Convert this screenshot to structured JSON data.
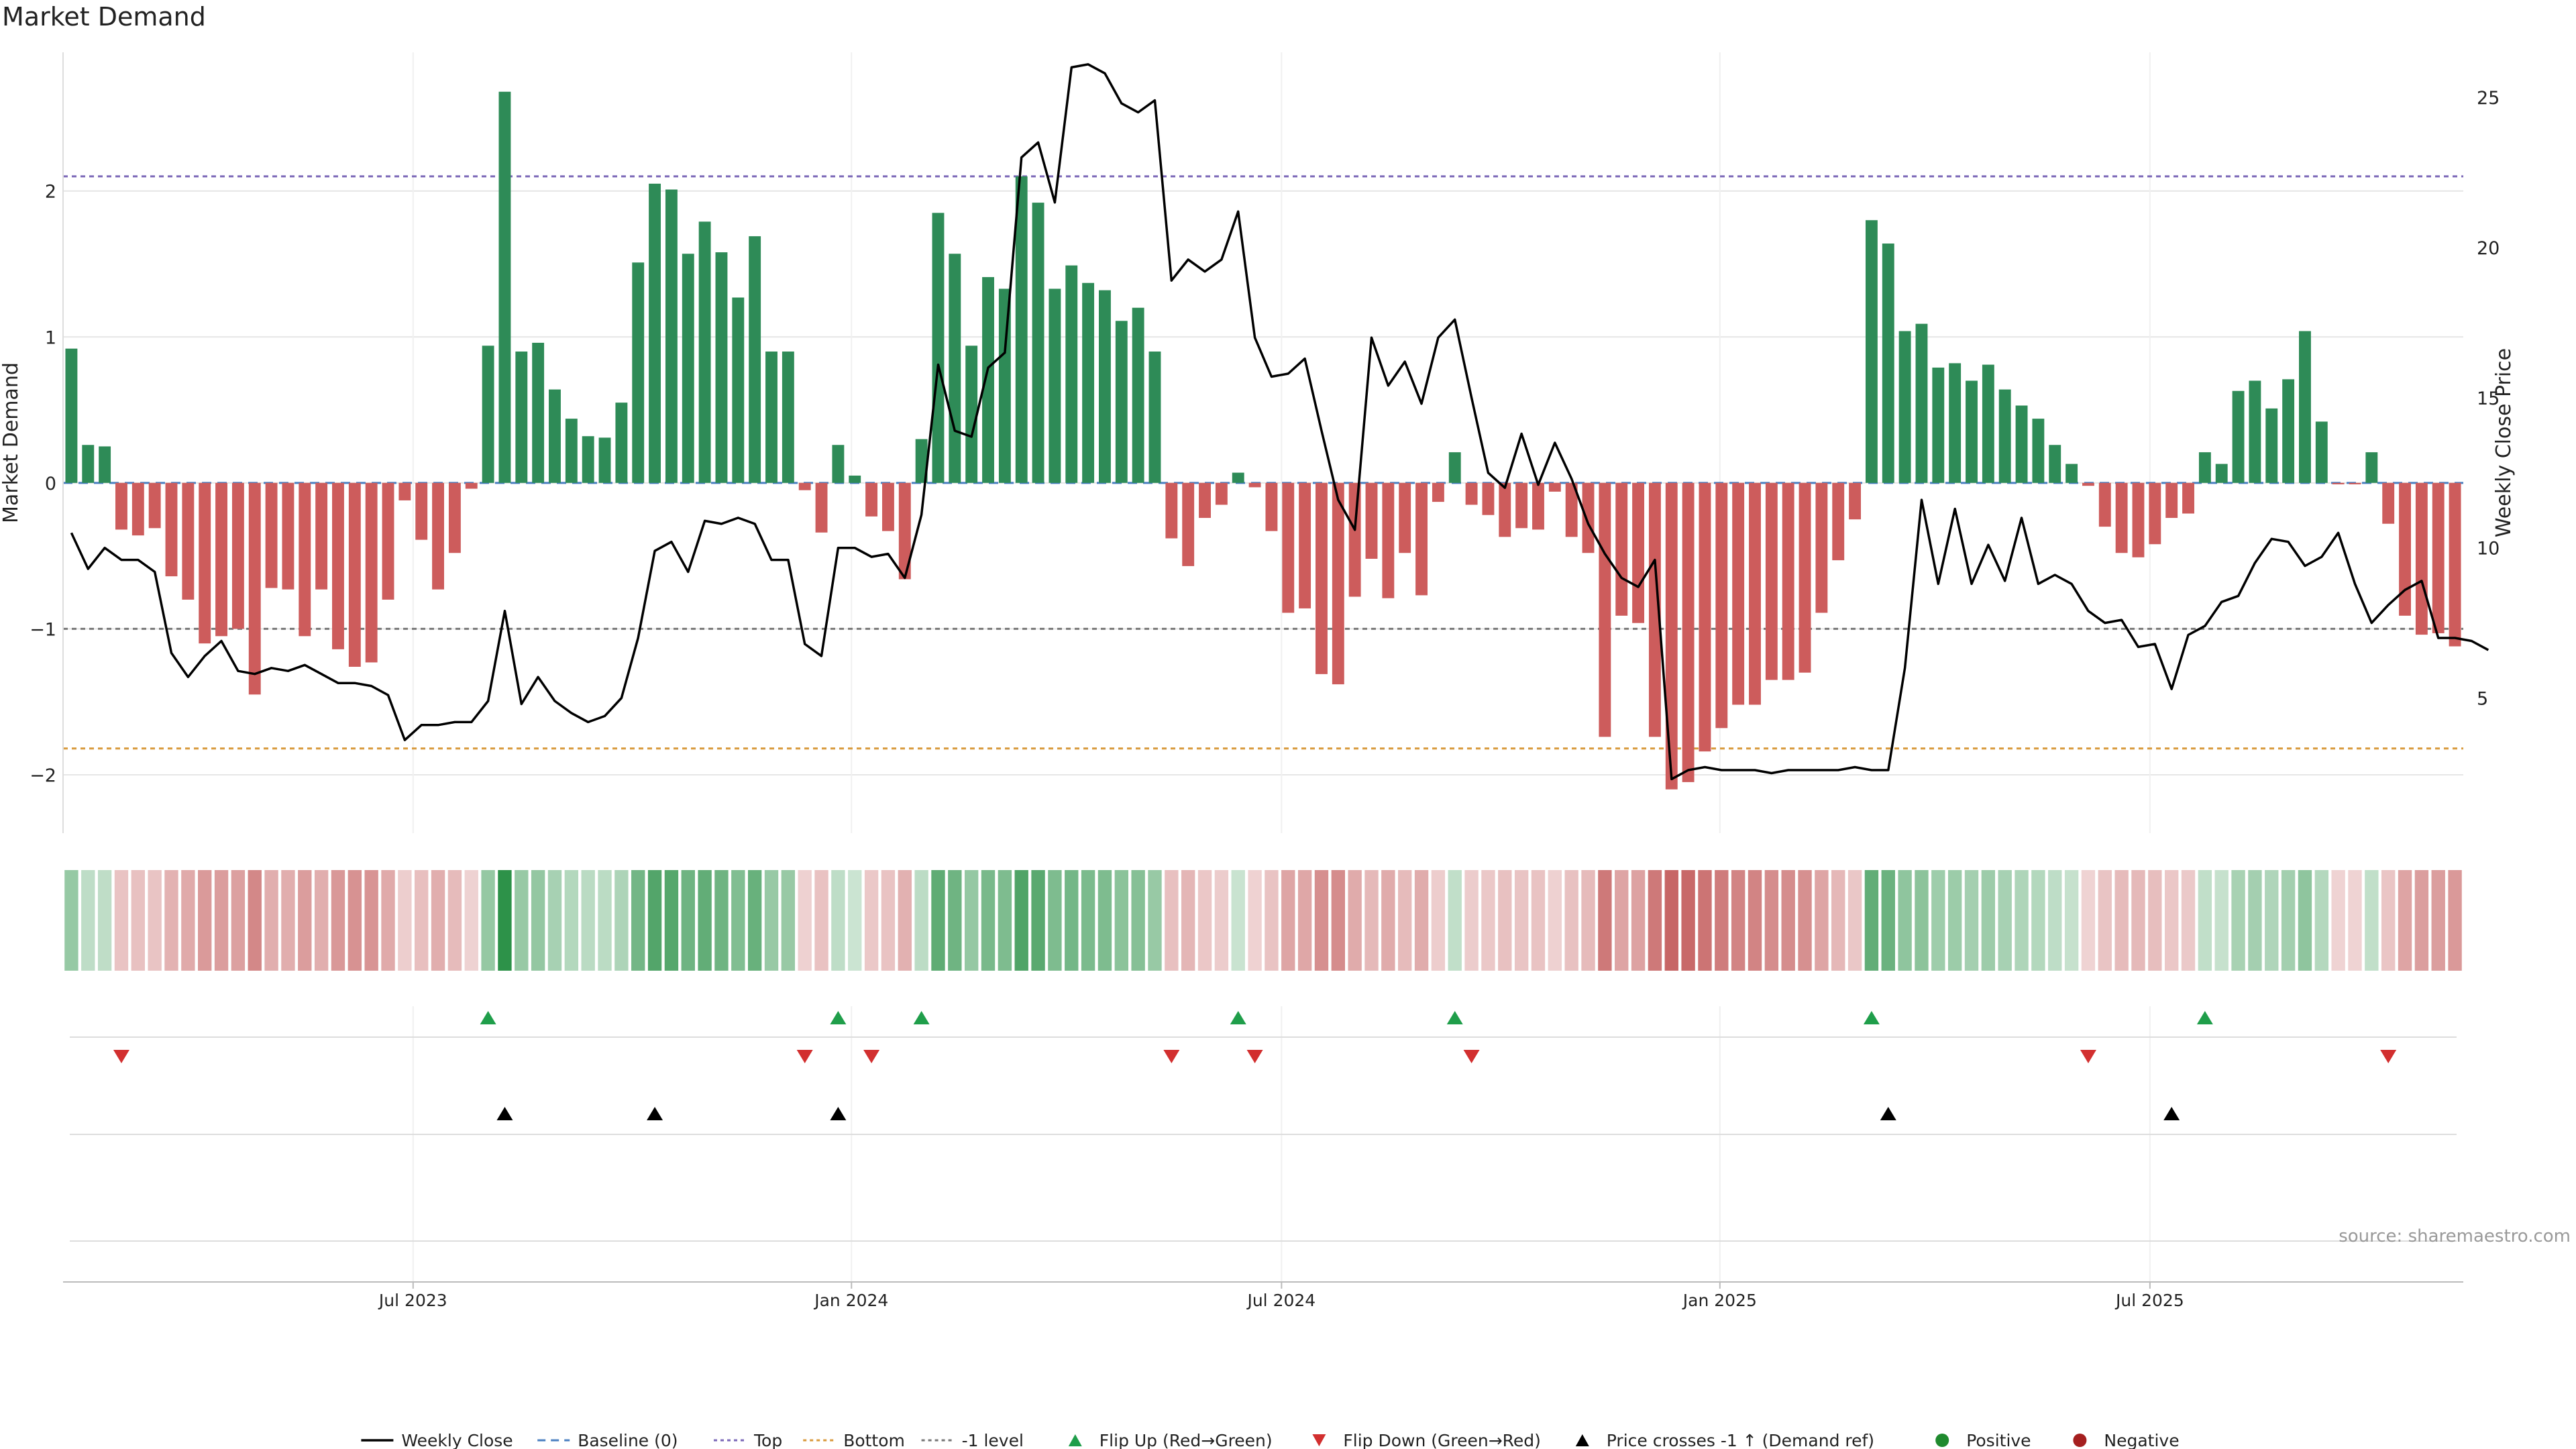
{
  "chart_data": {
    "type": "bar",
    "title": "Market Demand",
    "ylabel": "Market Demand",
    "y2label": "Weekly Close Price",
    "ylim": [
      -2.4,
      2.95
    ],
    "y2lim": [
      0.5,
      26.5
    ],
    "yticks": [
      -2,
      -1,
      0,
      1,
      2
    ],
    "ytick_labels": [
      "−2",
      "−1",
      "0",
      "1",
      "2"
    ],
    "y2ticks": [
      5,
      10,
      15,
      20,
      25
    ],
    "xtick_labels": [
      {
        "label": "Jul 2023",
        "week": 20.5
      },
      {
        "label": "Jan 2024",
        "week": 46.8
      },
      {
        "label": "Jul 2024",
        "week": 72.6
      },
      {
        "label": "Jan 2025",
        "week": 98.9
      },
      {
        "label": "Jul 2025",
        "week": 124.7
      }
    ],
    "levels": {
      "baseline": 0,
      "top": 2.1,
      "bottom": -1.82,
      "minus_one": -1
    },
    "demand": [
      0.92,
      0.26,
      0.25,
      -0.32,
      -0.36,
      -0.31,
      -0.64,
      -0.8,
      -1.1,
      -1.05,
      -1.0,
      -1.45,
      -0.72,
      -0.73,
      -1.05,
      -0.73,
      -1.14,
      -1.26,
      -1.23,
      -0.8,
      -0.12,
      -0.39,
      -0.73,
      -0.48,
      -0.04,
      0.94,
      2.68,
      0.9,
      0.96,
      0.64,
      0.44,
      0.32,
      0.31,
      0.55,
      1.51,
      2.05,
      2.01,
      1.57,
      1.79,
      1.58,
      1.27,
      1.69,
      0.9,
      0.9,
      -0.05,
      -0.34,
      0.26,
      0.05,
      -0.23,
      -0.33,
      -0.66,
      0.3,
      1.85,
      1.57,
      0.94,
      1.41,
      1.33,
      2.1,
      1.92,
      1.33,
      1.49,
      1.37,
      1.32,
      1.11,
      1.2,
      0.9,
      -0.38,
      -0.57,
      -0.24,
      -0.15,
      0.07,
      -0.03,
      -0.33,
      -0.89,
      -0.86,
      -1.31,
      -1.38,
      -0.78,
      -0.52,
      -0.79,
      -0.48,
      -0.77,
      -0.13,
      0.21,
      -0.15,
      -0.22,
      -0.37,
      -0.31,
      -0.32,
      -0.06,
      -0.37,
      -0.48,
      -1.74,
      -0.91,
      -0.96,
      -1.74,
      -2.1,
      -2.05,
      -1.84,
      -1.68,
      -1.52,
      -1.52,
      -1.35,
      -1.35,
      -1.3,
      -0.89,
      -0.53,
      -0.25,
      1.8,
      1.64,
      1.04,
      1.09,
      0.79,
      0.82,
      0.7,
      0.81,
      0.64,
      0.53,
      0.44,
      0.26,
      0.13,
      -0.02,
      -0.3,
      -0.48,
      -0.51,
      -0.42,
      -0.24,
      -0.21,
      0.21,
      0.13,
      0.63,
      0.7,
      0.51,
      0.71,
      1.04,
      0.42,
      -0.01,
      -0.01,
      0.21,
      -0.28,
      -0.91,
      -1.04,
      -1.03,
      -1.12
    ],
    "weekly_close": [
      10.5,
      9.3,
      10.0,
      9.6,
      9.6,
      9.2,
      6.5,
      5.7,
      6.4,
      6.9,
      5.9,
      5.8,
      6.0,
      5.9,
      6.1,
      5.8,
      5.5,
      5.5,
      5.4,
      5.1,
      3.6,
      4.1,
      4.1,
      4.2,
      4.2,
      4.9,
      7.9,
      4.8,
      5.7,
      4.9,
      4.5,
      4.2,
      4.4,
      5.0,
      7.0,
      9.9,
      10.2,
      9.2,
      10.9,
      10.8,
      11.0,
      10.8,
      9.6,
      9.6,
      6.8,
      6.4,
      10.0,
      10.0,
      9.7,
      9.8,
      9.0,
      11.1,
      16.1,
      13.9,
      13.7,
      16.0,
      16.5,
      23.0,
      23.5,
      21.5,
      26.0,
      26.1,
      25.8,
      24.8,
      24.5,
      24.9,
      18.9,
      19.6,
      19.2,
      19.6,
      21.2,
      17.0,
      15.7,
      15.8,
      16.3,
      13.9,
      11.6,
      10.6,
      17.0,
      15.4,
      16.2,
      14.8,
      17.0,
      17.6,
      15.0,
      12.5,
      12.0,
      13.8,
      12.1,
      13.5,
      12.3,
      10.8,
      9.8,
      9.0,
      8.7,
      9.6,
      2.3,
      2.6,
      2.7,
      2.6,
      2.6,
      2.6,
      2.5,
      2.6,
      2.6,
      2.6,
      2.6,
      2.7,
      2.6,
      2.6,
      6.0,
      11.6,
      8.8,
      11.3,
      8.8,
      10.1,
      8.9,
      11.0,
      8.8,
      9.1,
      8.8,
      7.9,
      7.5,
      7.6,
      6.7,
      6.8,
      5.3,
      7.1,
      7.4,
      8.2,
      8.4,
      9.5,
      10.3,
      10.2,
      9.4,
      9.7,
      10.5,
      8.8,
      7.5,
      8.1,
      8.6,
      8.9,
      7.0,
      7.0,
      6.9,
      6.6
    ],
    "heat_strip": {
      "positive_color": "#1e8a3c",
      "negative_color": "#b73b3b"
    },
    "flip_up_weeks": [
      25,
      46,
      51,
      70,
      83,
      108,
      128
    ],
    "flip_down_weeks": [
      3,
      44,
      48,
      66,
      71,
      84,
      121,
      139
    ],
    "price_cross_weeks": [
      26,
      35,
      46,
      109,
      126
    ],
    "colors": {
      "positive_bar": "#2e8b57",
      "negative_bar": "#cd5c5c",
      "close_line": "#000000",
      "baseline": "#4a7fc1",
      "top": "#7b68b8",
      "bottom": "#d89a3c",
      "minus_one": "#777777",
      "flip_up": "#1f9e4a",
      "flip_down": "#d22f2f",
      "price_cross": "#000000",
      "grid": "#e6e6e6"
    },
    "legend_position": "bottom-center",
    "legend": [
      {
        "key": "close",
        "label": "Weekly Close"
      },
      {
        "key": "baseline",
        "label": "Baseline (0)"
      },
      {
        "key": "top",
        "label": "Top"
      },
      {
        "key": "bottom",
        "label": "Bottom"
      },
      {
        "key": "minus_one",
        "label": "-1 level"
      },
      {
        "key": "flip_up",
        "label": "Flip Up (Red→Green)"
      },
      {
        "key": "flip_down",
        "label": "Flip Down (Green→Red)"
      },
      {
        "key": "price_cross",
        "label": "Price crosses -1 ↑ (Demand ref)"
      },
      {
        "key": "positive",
        "label": "Positive"
      },
      {
        "key": "negative",
        "label": "Negative"
      }
    ],
    "source": "source: sharemaestro.com"
  }
}
